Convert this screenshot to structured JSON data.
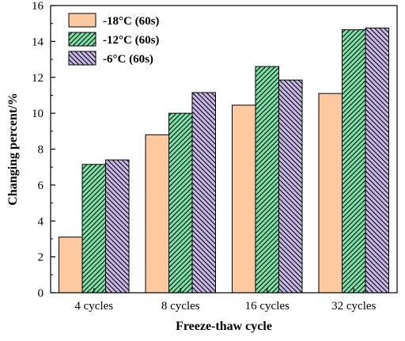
{
  "chart_data": {
    "type": "bar",
    "title": "",
    "xlabel": "Freeze-thaw cycle",
    "ylabel": "Changing percent/%",
    "categories": [
      "4 cycles",
      "8 cycles",
      "16 cycles",
      "32 cycles"
    ],
    "series": [
      {
        "name": "-18°C (60s)",
        "values": [
          3.1,
          8.8,
          10.45,
          11.1
        ],
        "color": "#fdc9a1",
        "pattern": "solid"
      },
      {
        "name": "-12°C (60s)",
        "values": [
          7.15,
          10.0,
          12.6,
          14.65
        ],
        "color": "#7ee2a8",
        "pattern": "diagonal-hatch"
      },
      {
        "name": "-6°C (60s)",
        "values": [
          7.4,
          11.15,
          11.85,
          14.75
        ],
        "color": "#c9b7e7",
        "pattern": "diagonal-hatch"
      }
    ],
    "ylim": [
      0,
      16
    ],
    "yticks": [
      0,
      2,
      4,
      6,
      8,
      10,
      12,
      14,
      16
    ],
    "grid": false,
    "legend_position": "top-left"
  }
}
